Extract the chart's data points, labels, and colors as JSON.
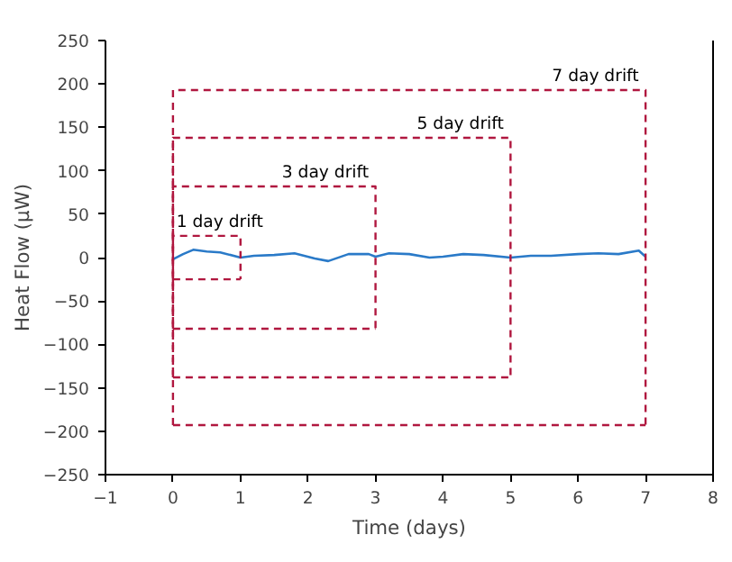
{
  "chart_data": {
    "type": "line",
    "xlabel": "Time (days)",
    "ylabel": "Heat Flow (µW)",
    "xlim": [
      -1,
      8
    ],
    "ylim": [
      -250,
      250
    ],
    "xticks": [
      -1,
      0,
      1,
      2,
      3,
      4,
      5,
      6,
      7,
      8
    ],
    "yticks": [
      -250,
      -200,
      -150,
      -100,
      -50,
      0,
      50,
      100,
      150,
      200,
      250
    ],
    "grid": false,
    "legend": false,
    "line_style": "solid",
    "marker": "none",
    "series": [
      {
        "color": "#2a7ac8",
        "x": [
          0,
          0.15,
          0.3,
          0.5,
          0.7,
          1,
          1.2,
          1.5,
          1.8,
          2.1,
          2.3,
          2.6,
          2.9,
          3,
          3.2,
          3.5,
          3.8,
          4,
          4.3,
          4.6,
          5,
          5.3,
          5.6,
          6,
          6.3,
          6.6,
          6.9,
          7
        ],
        "values": [
          -2,
          4,
          9,
          7,
          6,
          0,
          2,
          3,
          5,
          -1,
          -4,
          4,
          4,
          1,
          5,
          4,
          0,
          1,
          4,
          3,
          0,
          2,
          2,
          4,
          5,
          4,
          8,
          1
        ]
      },
      {
        "name": "1 day drift",
        "color": "#b0173f",
        "line_style": "dashed",
        "x": [
          0,
          0,
          1,
          1
        ],
        "values": [
          -25,
          25,
          25,
          -25
        ]
      },
      {
        "color": "#b0173f",
        "line_style": "dashed",
        "x": [
          0,
          1
        ],
        "values": [
          -25,
          -25
        ]
      },
      {
        "name": "3 day drift",
        "color": "#b0173f",
        "line_style": "dashed",
        "x": [
          0,
          0,
          3,
          3
        ],
        "values": [
          -82,
          82,
          82,
          -82
        ]
      },
      {
        "color": "#b0173f",
        "line_style": "dashed",
        "x": [
          0,
          3
        ],
        "values": [
          -82,
          -82
        ]
      },
      {
        "name": "5 day drift",
        "color": "#b0173f",
        "line_style": "dashed",
        "x": [
          0,
          0,
          5,
          5
        ],
        "values": [
          -138,
          138,
          138,
          -138
        ]
      },
      {
        "color": "#b0173f",
        "line_style": "dashed",
        "x": [
          0,
          5
        ],
        "values": [
          -138,
          -138
        ]
      },
      {
        "name": "7 day drift",
        "color": "#b0173f",
        "line_style": "dashed",
        "x": [
          0,
          0,
          7,
          7
        ],
        "values": [
          -193,
          193,
          193,
          -193
        ]
      },
      {
        "color": "#b0173f",
        "line_style": "dashed",
        "x": [
          0,
          7
        ],
        "values": [
          -193,
          -193
        ]
      }
    ]
  }
}
